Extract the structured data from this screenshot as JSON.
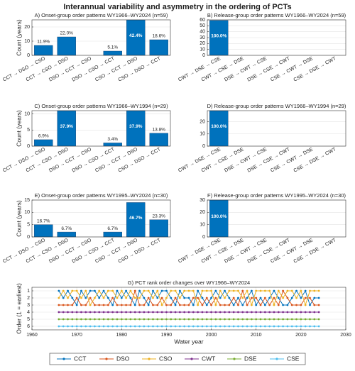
{
  "title": "Interannual variability and asymmetry in the ordering of PCTs",
  "chart_data": [
    {
      "type": "bar",
      "title": "A) Onset-group order patterns WY1966–WY2024 (n=59)",
      "ylabel": "Count (years)",
      "categories": [
        "CCT → DSO → CSO",
        "CCT → CSO → DSO",
        "DSO → CCT → CSO",
        "DSO → CSO → CCT",
        "CSO → CCT → DSO",
        "CSO → DSO → CCT"
      ],
      "values": [
        7,
        13,
        0,
        3,
        25,
        11
      ],
      "value_labels": [
        "11.9%",
        "22.0%",
        null,
        "5.1%",
        "42.4%",
        "18.6%"
      ],
      "color": "#0072BD",
      "ylim": [
        0,
        25
      ],
      "yticks": [
        0,
        10,
        20
      ],
      "grid": true
    },
    {
      "type": "bar",
      "title": "B) Release-group order patterns WY1966–WY2024 (n=59)",
      "categories": [
        "CWT → DSE → CSE",
        "CWT → CSE → DSE",
        "DSE → CWT → CSE",
        "DSE → CSE → CWT",
        "CSE → CWT → DSE",
        "CSE → DSE → CWT"
      ],
      "values": [
        59,
        0,
        0,
        0,
        0,
        0
      ],
      "value_labels": [
        "100.0%",
        null,
        null,
        null,
        null,
        null
      ],
      "color": "#0072BD",
      "ylim": [
        0,
        60
      ],
      "yticks": [
        0,
        10,
        20,
        30,
        40,
        50,
        60
      ],
      "grid": true
    },
    {
      "type": "bar",
      "title": "C) Onset-group order patterns WY1966–WY1994 (n=29)",
      "ylabel": "Count (years)",
      "categories": [
        "CCT → DSO → CSO",
        "CCT → CSO → DSO",
        "DSO → CCT → CSO",
        "DSO → CSO → CCT",
        "CSO → CCT → DSO",
        "CSO → DSO → CCT"
      ],
      "values": [
        2,
        11,
        0,
        1,
        11,
        4
      ],
      "value_labels": [
        "6.9%",
        "37.9%",
        null,
        "3.4%",
        "37.9%",
        "13.8%"
      ],
      "color": "#0072BD",
      "ylim": [
        0,
        11
      ],
      "yticks": [
        0,
        5,
        10
      ],
      "grid": true
    },
    {
      "type": "bar",
      "title": "D) Release-group order patterns WY1966–WY1994 (n=29)",
      "categories": [
        "CWT → DSE → CSE",
        "CWT → CSE → DSE",
        "DSE → CWT → CSE",
        "DSE → CSE → CWT",
        "CSE → CWT → DSE",
        "CSE → DSE → CWT"
      ],
      "values": [
        29,
        0,
        0,
        0,
        0,
        0
      ],
      "value_labels": [
        "100.0%",
        null,
        null,
        null,
        null,
        null
      ],
      "color": "#0072BD",
      "ylim": [
        0,
        29
      ],
      "yticks": [
        0,
        10,
        20
      ],
      "grid": true
    },
    {
      "type": "bar",
      "title": "E) Onset-group order patterns WY1995–WY2024 (n=30)",
      "ylabel": "Count (years)",
      "categories": [
        "CCT → DSO → CSO",
        "CCT → CSO → DSO",
        "DSO → CCT → CSO",
        "DSO → CSO → CCT",
        "CSO → CCT → DSO",
        "CSO → DSO → CCT"
      ],
      "values": [
        5,
        2,
        0,
        2,
        14,
        7
      ],
      "value_labels": [
        "16.7%",
        "6.7%",
        null,
        "6.7%",
        "46.7%",
        "23.3%"
      ],
      "color": "#0072BD",
      "ylim": [
        0,
        15
      ],
      "yticks": [
        0,
        5,
        10,
        15
      ],
      "grid": true
    },
    {
      "type": "bar",
      "title": "F) Release-group order patterns WY1995–WY2024 (n=30)",
      "categories": [
        "CWT → DSE → CSE",
        "CWT → CSE → DSE",
        "DSE → CWT → CSE",
        "DSE → CSE → CWT",
        "CSE → CWT → DSE",
        "CSE → DSE → CWT"
      ],
      "values": [
        30,
        0,
        0,
        0,
        0,
        0
      ],
      "value_labels": [
        "100.0%",
        null,
        null,
        null,
        null,
        null
      ],
      "color": "#0072BD",
      "ylim": [
        0,
        30
      ],
      "yticks": [
        0,
        10,
        20,
        30
      ],
      "grid": true
    },
    {
      "type": "line",
      "title": "G) PCT rank order changes over WY1966–WY2024",
      "xlabel": "Water year",
      "ylabel": "Order (1 = earliest)",
      "x": [
        1966,
        1967,
        1968,
        1969,
        1970,
        1971,
        1972,
        1973,
        1974,
        1975,
        1976,
        1977,
        1978,
        1979,
        1980,
        1981,
        1982,
        1983,
        1984,
        1985,
        1986,
        1987,
        1988,
        1989,
        1990,
        1991,
        1992,
        1993,
        1994,
        1995,
        1996,
        1997,
        1998,
        1999,
        2000,
        2001,
        2002,
        2003,
        2004,
        2005,
        2006,
        2007,
        2008,
        2009,
        2010,
        2011,
        2012,
        2013,
        2014,
        2015,
        2016,
        2017,
        2018,
        2019,
        2020,
        2021,
        2022,
        2023,
        2024
      ],
      "xlim": [
        1960,
        2030
      ],
      "xticks": [
        1960,
        1970,
        1980,
        1990,
        2000,
        2010,
        2020,
        2030
      ],
      "ylim": [
        6.5,
        0.5
      ],
      "yticks": [
        1,
        2,
        3,
        4,
        5,
        6
      ],
      "grid": true,
      "series": [
        {
          "name": "CCT",
          "color": "#0072BD",
          "values": [
            1,
            2,
            1,
            2,
            3,
            1,
            2,
            1,
            1,
            2,
            1,
            2,
            3,
            1,
            2,
            1,
            2,
            3,
            1,
            2,
            3,
            1,
            2,
            1,
            1,
            2,
            3,
            1,
            2,
            2,
            3,
            1,
            2,
            3,
            2,
            1,
            2,
            1,
            2,
            3,
            2,
            3,
            2,
            1,
            3,
            2,
            3,
            2,
            1,
            2,
            3,
            3,
            2,
            1,
            2,
            1,
            3,
            2,
            2
          ]
        },
        {
          "name": "DSO",
          "color": "#D95319",
          "values": [
            3,
            3,
            3,
            3,
            2,
            3,
            3,
            2,
            3,
            3,
            3,
            3,
            2,
            3,
            3,
            3,
            3,
            1,
            3,
            3,
            2,
            3,
            3,
            2,
            3,
            3,
            2,
            3,
            3,
            3,
            2,
            2,
            3,
            2,
            3,
            2,
            3,
            3,
            3,
            2,
            3,
            1,
            3,
            2,
            2,
            3,
            2,
            3,
            2,
            3,
            1,
            2,
            3,
            3,
            3,
            2,
            2,
            3,
            3
          ]
        },
        {
          "name": "CSO",
          "color": "#EDB120",
          "values": [
            2,
            1,
            2,
            1,
            1,
            2,
            1,
            3,
            2,
            1,
            2,
            1,
            1,
            2,
            1,
            2,
            1,
            2,
            2,
            1,
            1,
            2,
            1,
            3,
            2,
            1,
            1,
            2,
            1,
            1,
            1,
            3,
            1,
            1,
            1,
            3,
            1,
            2,
            1,
            1,
            1,
            2,
            1,
            3,
            1,
            1,
            1,
            1,
            3,
            1,
            2,
            1,
            1,
            2,
            1,
            3,
            1,
            1,
            1
          ]
        },
        {
          "name": "CWT",
          "color": "#7E2F8E",
          "values": [
            4,
            4,
            4,
            4,
            4,
            4,
            4,
            4,
            4,
            4,
            4,
            4,
            4,
            4,
            4,
            4,
            4,
            4,
            4,
            4,
            4,
            4,
            4,
            4,
            4,
            4,
            4,
            4,
            4,
            4,
            4,
            4,
            4,
            4,
            4,
            4,
            4,
            4,
            4,
            4,
            4,
            4,
            4,
            4,
            4,
            4,
            4,
            4,
            4,
            4,
            4,
            4,
            4,
            4,
            4,
            4,
            4,
            4,
            4
          ]
        },
        {
          "name": "DSE",
          "color": "#77AC30",
          "values": [
            5,
            5,
            5,
            5,
            5,
            5,
            5,
            5,
            5,
            5,
            5,
            5,
            5,
            5,
            5,
            5,
            5,
            5,
            5,
            5,
            5,
            5,
            5,
            5,
            5,
            5,
            5,
            5,
            5,
            5,
            5,
            5,
            5,
            5,
            5,
            5,
            5,
            5,
            5,
            5,
            5,
            5,
            5,
            5,
            5,
            5,
            5,
            5,
            5,
            5,
            5,
            5,
            5,
            5,
            5,
            5,
            5,
            5,
            5
          ]
        },
        {
          "name": "CSE",
          "color": "#4DBEEE",
          "values": [
            6,
            6,
            6,
            6,
            6,
            6,
            6,
            6,
            6,
            6,
            6,
            6,
            6,
            6,
            6,
            6,
            6,
            6,
            6,
            6,
            6,
            6,
            6,
            6,
            6,
            6,
            6,
            6,
            6,
            6,
            6,
            6,
            6,
            6,
            6,
            6,
            6,
            6,
            6,
            6,
            6,
            6,
            6,
            6,
            6,
            6,
            6,
            6,
            6,
            6,
            6,
            6,
            6,
            6,
            6,
            6,
            6,
            6,
            6
          ]
        }
      ]
    }
  ]
}
